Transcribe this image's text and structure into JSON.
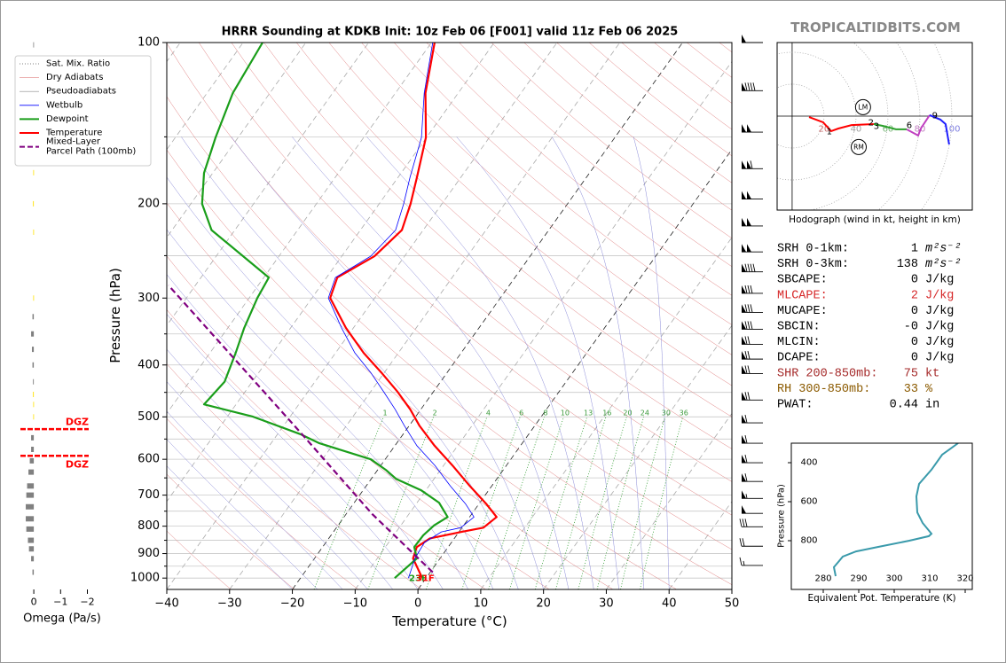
{
  "header": {
    "watermark": "TROPICALTIDBITS.COM"
  },
  "chart_data": [
    {
      "type": "skewt",
      "title": "HRRR Sounding at KDKB Init: 10z Feb 06 [F001] valid 11z Feb 06 2025",
      "xlabel": "Temperature (°C)",
      "ylabel": "Pressure (hPa)",
      "xlim": [
        -40,
        50
      ],
      "xticks": [
        {
          "value": -40,
          "label": "−40"
        },
        {
          "value": -30,
          "label": "−30"
        },
        {
          "value": -20,
          "label": "−20"
        },
        {
          "value": -10,
          "label": "−10"
        },
        0,
        10,
        20,
        30,
        40,
        50
      ],
      "ylim": [
        1050,
        100
      ],
      "log_y": true,
      "yticks": [
        100,
        200,
        300,
        400,
        500,
        600,
        700,
        800,
        900,
        1000
      ],
      "series": [
        {
          "color": "#ff0000",
          "width": 2.2,
          "pressure": [
            100,
            124.3,
            150.4,
            178.5,
            200.1,
            224,
            250.6,
            274.6,
            299.9,
            341,
            380,
            413,
            449,
            484,
            519,
            566,
            616,
            673,
            726,
            769,
            805,
            820,
            843,
            875,
            919,
            1000
          ],
          "values": [
            -59.5,
            -55.2,
            -50.1,
            -47.0,
            -45.0,
            -43.4,
            -44.8,
            -48.3,
            -47.1,
            -41.2,
            -35.5,
            -30.5,
            -25.7,
            -21.7,
            -18.4,
            -13.7,
            -8.6,
            -3.5,
            1.1,
            4.3,
            3.4,
            0.4,
            -3.9,
            -5.0,
            -4.3,
            -0.6
          ]
        },
        {
          "color": "#1a9e1a",
          "width": 2.2,
          "pressure": [
            100,
            124.3,
            150.4,
            175.2,
            200.1,
            224,
            274.6,
            299.9,
            341,
            380,
            429.8,
            473.8,
            499.6,
            539.3,
            560,
            600,
            628,
            653,
            686,
            723,
            769,
            797,
            832,
            875,
            919,
            1000
          ],
          "values": [
            -86.9,
            -85.9,
            -83.6,
            -81.4,
            -78.2,
            -73.7,
            -59.2,
            -58.7,
            -57.4,
            -55.9,
            -54.4,
            -55.1,
            -45.9,
            -36.2,
            -32.3,
            -22.3,
            -18.7,
            -16.0,
            -10.7,
            -6.5,
            -3.5,
            -4.7,
            -5.3,
            -5.4,
            -3.7,
            -5.0
          ]
        },
        {
          "color": "#0000ff",
          "width": 0.8,
          "pressure": [
            100,
            124.3,
            150.4,
            178.5,
            200.1,
            224,
            250.6,
            274.6,
            299.9,
            341,
            380,
            413,
            449,
            484,
            519,
            566,
            616,
            673,
            726,
            769,
            805,
            820,
            858,
            919,
            1000
          ],
          "values": [
            -59.8,
            -55.4,
            -50.8,
            -48.1,
            -46.1,
            -44.4,
            -45.4,
            -48.6,
            -47.4,
            -41.9,
            -36.9,
            -32.2,
            -27.9,
            -24.1,
            -20.8,
            -16.5,
            -11.4,
            -6.6,
            -2.2,
            0.7,
            -0.2,
            -2.8,
            -4.3,
            -4.0,
            -2.8
          ]
        },
        {
          "color": "#800080",
          "width": 2.2,
          "dash": "7,4",
          "pressure": [
            975,
            760,
            536,
            284
          ],
          "values": [
            0.4,
            -15.8,
            -36.4,
            -74.3
          ]
        }
      ],
      "surface_labels": [
        {
          "label": "23F",
          "color": "#1a9e1a"
        },
        {
          "label": "31F",
          "color": "#ff0000"
        }
      ],
      "mixing_ratios": [
        1,
        2,
        4,
        6,
        8,
        10,
        13,
        16,
        20,
        24,
        30,
        36
      ],
      "legend": [
        {
          "lines": [
            "Sat. Mix. Ratio"
          ],
          "color": "#555555",
          "dash": "1,2",
          "width": 0.8
        },
        {
          "lines": [
            "Dry Adiabats"
          ],
          "color": "#e08080",
          "width": 0.6
        },
        {
          "lines": [
            "Pseudoadiabats"
          ],
          "color": "#888888",
          "width": 0.6
        },
        {
          "lines": [
            "Wetbulb"
          ],
          "color": "#0000ff",
          "width": 0.8
        },
        {
          "lines": [
            "Dewpoint"
          ],
          "color": "#1a9e1a",
          "width": 2
        },
        {
          "lines": [
            "Temperature"
          ],
          "color": "#ff0000",
          "width": 2
        },
        {
          "lines": [
            "Mixed-Layer",
            "Parcel Path (100mb)"
          ],
          "color": "#800080",
          "dash": "6,3",
          "width": 2
        }
      ],
      "wind_barbs": {
        "pressure": [
          100,
          123,
          147,
          172,
          196,
          220,
          246,
          268,
          294,
          319,
          343,
          366,
          390,
          415,
          465,
          513,
          560,
          609,
          660,
          710,
          757,
          802,
          872,
          947
        ],
        "speed": [
          50,
          90,
          100,
          110,
          100,
          100,
          100,
          90,
          80,
          80,
          80,
          70,
          70,
          70,
          70,
          60,
          60,
          60,
          60,
          55,
          50,
          30,
          20,
          15
        ]
      },
      "omega": {
        "xlabel": "Omega (Pa/s)",
        "xlim": [
          0.5,
          -2.05
        ],
        "xticks": [
          0,
          {
            "value": -1,
            "label": "−1"
          },
          {
            "value": -2,
            "label": "−2"
          }
        ],
        "pressure": [
          101,
          150,
          175,
          200,
          226,
          300,
          325,
          350,
          374,
          400,
          430,
          454,
          474,
          500,
          547,
          575,
          604,
          634,
          673,
          700,
          736,
          775,
          810,
          850,
          882,
          920,
          975
        ],
        "values": [
          0.02,
          0.05,
          0.02,
          0.03,
          0.02,
          0.02,
          0.05,
          0.1,
          0.07,
          0.05,
          0.03,
          0.03,
          0.02,
          0.02,
          0.1,
          0.1,
          0.15,
          0.2,
          0.25,
          0.28,
          0.3,
          0.3,
          0.28,
          0.22,
          0.18,
          0.1,
          0.05
        ],
        "colors": [
          "#808080",
          "#808080",
          "#ffe000",
          "#ffe000",
          "#ffe000",
          "#ffe000",
          "#808080",
          "#808080",
          "#808080",
          "#808080",
          "#808080",
          "#ffe000",
          "#ffe000",
          "#ffe000",
          "#808080",
          "#808080",
          "#808080",
          "#808080",
          "#808080",
          "#808080",
          "#808080",
          "#808080",
          "#808080",
          "#808080",
          "#808080",
          "#808080",
          "#808080"
        ]
      },
      "dgz": [
        {
          "pressure": 527,
          "label": "DGZ"
        },
        {
          "pressure": 591,
          "label": "DGZ"
        }
      ]
    },
    {
      "type": "hodograph",
      "caption": "Hodograph (wind in kt, height in km)",
      "xlim": [
        -9.4,
        112.8
      ],
      "ylim": [
        -58.9,
        46.1
      ],
      "rings": [
        20,
        40,
        60,
        80,
        100
      ],
      "ring_label_colors": [
        "#c87070",
        "#a0a0a0",
        "#7cb87c",
        "#c080c0",
        "#8080e0"
      ],
      "segments": [
        {
          "color": "#ff0000",
          "u": [
            10.6,
            19.4,
            24.4,
            28.9,
            37.2,
            51.1
          ],
          "v": [
            -0.6,
            -3.9,
            -9.4,
            -7.8,
            -5.6,
            -5.0
          ]
        },
        {
          "color": "#2ca02c",
          "u": [
            51.1,
            56.7,
            65.0,
            71.7
          ],
          "v": [
            -5.0,
            -6.1,
            -8.3,
            -8.3
          ]
        },
        {
          "color": "#c040c0",
          "u": [
            71.7,
            76.1,
            78.9,
            80.6,
            86.1
          ],
          "v": [
            -8.3,
            -10.6,
            -12.2,
            -7.8,
            0.6
          ]
        },
        {
          "color": "#1f1fff",
          "u": [
            86.1,
            92.8,
            96.1,
            98.3
          ],
          "v": [
            0.6,
            -2.2,
            -5.0,
            -17.8
          ]
        }
      ],
      "height_labels": [
        {
          "label": "1",
          "u": 23.3,
          "v": -10.0
        },
        {
          "label": "2",
          "u": 49.4,
          "v": -4.4
        },
        {
          "label": "3",
          "u": 52.8,
          "v": -6.7
        },
        {
          "label": "6",
          "u": 73.3,
          "v": -6.1
        },
        {
          "label": "9",
          "u": 89.4,
          "v": 0.0
        }
      ],
      "storm_motion": [
        {
          "label": "LM",
          "u": 44.4,
          "v": 5.6
        },
        {
          "label": "RM",
          "u": 41.7,
          "v": -19.4
        }
      ]
    },
    {
      "type": "line",
      "xlabel": "Equivalent Pot. Temperature (K)",
      "ylabel": "Pressure (hPa)",
      "xlim": [
        271,
        322
      ],
      "xticks": [
        280,
        290,
        300,
        310,
        320
      ],
      "ylim": [
        1050,
        300
      ],
      "yticks": [
        400,
        600,
        800
      ],
      "series": [
        {
          "color": "#3a9aab",
          "pressure": [
            300,
            359,
            436,
            509,
            573,
            655,
            709,
            764,
            777,
            800,
            832,
            855,
            882,
            909,
            936,
            982
          ],
          "values": [
            318,
            313.5,
            310.5,
            307,
            306.25,
            306.5,
            308,
            310.5,
            309.75,
            304.25,
            295.5,
            289.25,
            285.5,
            284.25,
            283,
            283.5
          ]
        }
      ]
    }
  ],
  "stats": [
    {
      "label": "SRH 0-1km:",
      "value": 1,
      "unit": "m²s⁻²",
      "color": "#000000"
    },
    {
      "label": "SRH 0-3km:",
      "value": 138,
      "unit": "m²s⁻²",
      "color": "#000000"
    },
    {
      "label": "SBCAPE:",
      "value": 0,
      "unit": "J/kg",
      "color": "#000000"
    },
    {
      "label": "MLCAPE:",
      "value": 2,
      "unit": "J/kg",
      "color": "#d62728"
    },
    {
      "label": "MUCAPE:",
      "value": 0,
      "unit": "J/kg",
      "color": "#000000"
    },
    {
      "label": "SBCIN:",
      "value": 0,
      "value_label": "-0",
      "unit": "J/kg",
      "color": "#000000"
    },
    {
      "label": "MLCIN:",
      "value": 0,
      "unit": "J/kg",
      "color": "#000000"
    },
    {
      "label": "DCAPE:",
      "value": 0,
      "unit": "J/kg",
      "color": "#000000"
    },
    {
      "label": "SHR 200-850mb:",
      "value": 75,
      "unit": "kt",
      "color": "#a52a2a"
    },
    {
      "label": "RH 300-850mb:",
      "value": 33,
      "unit": "%",
      "color": "#8b5a00"
    },
    {
      "label": "PWAT:",
      "value": 0.44,
      "unit": "in",
      "color": "#000000"
    }
  ]
}
